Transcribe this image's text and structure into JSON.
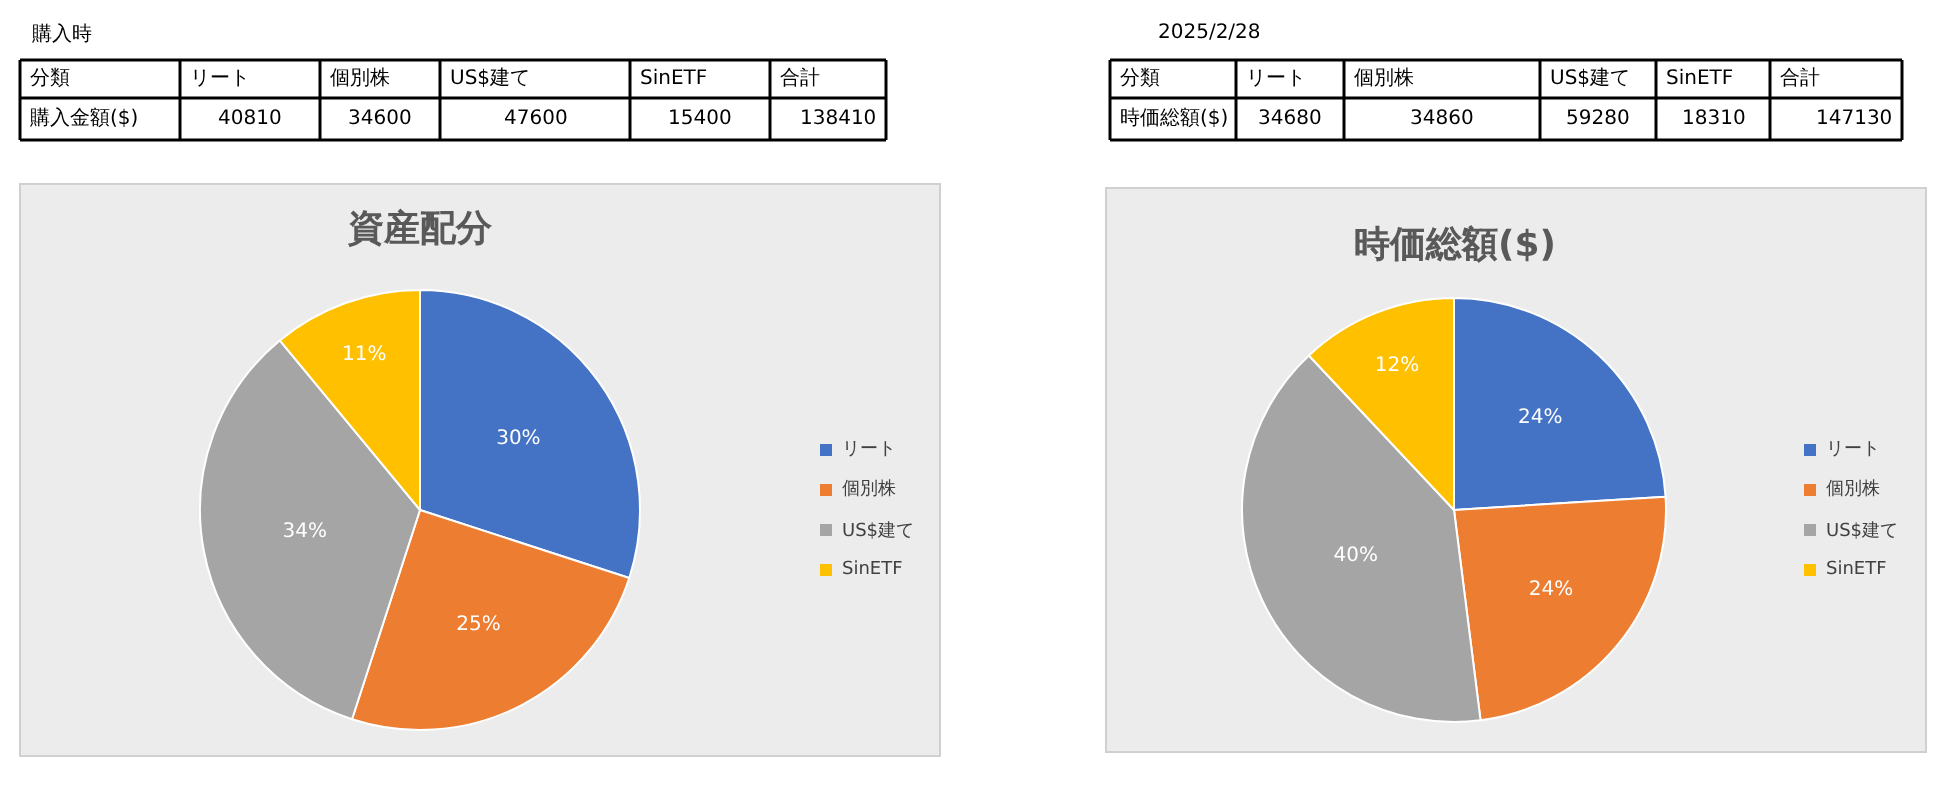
{
  "chart_data": [
    {
      "type": "other",
      "categories": [
        "リート",
        "個別株",
        "US$建て",
        "SinETF"
      ],
      "values": [
        40810,
        34600,
        47600,
        15400
      ],
      "data_labels": true,
      "annotations": [
        "購入時",
        "分類",
        "購入金額($)",
        "合計",
        "138410"
      ]
    },
    {
      "type": "pie",
      "title": "資産配分",
      "categories": [
        "リート",
        "個別株",
        "US$建て",
        "SinETF"
      ],
      "values": [
        30,
        25,
        34,
        11
      ],
      "colors": [
        "#4472c4",
        "#ed7d31",
        "#a5a5a5",
        "#ffc000"
      ],
      "value_labels": [
        "30%",
        "25%",
        "34%",
        "11%"
      ],
      "legend": "right"
    },
    {
      "type": "other",
      "categories": [
        "リート",
        "個別株",
        "US$建て",
        "SinETF"
      ],
      "values": [
        34680,
        34860,
        59280,
        18310
      ],
      "data_labels": true,
      "annotations": [
        "2025/2/28",
        "分類",
        "時価総額($)",
        "合計",
        "147130"
      ]
    },
    {
      "type": "pie",
      "title": "時価総額($)",
      "categories": [
        "リート",
        "個別株",
        "US$建て",
        "SinETF"
      ],
      "values": [
        24,
        24,
        40,
        12
      ],
      "colors": [
        "#4472c4",
        "#ed7d31",
        "#a5a5a5",
        "#ffc000"
      ],
      "value_labels": [
        "24%",
        "24%",
        "40%",
        "12%"
      ],
      "legend": "right"
    }
  ]
}
